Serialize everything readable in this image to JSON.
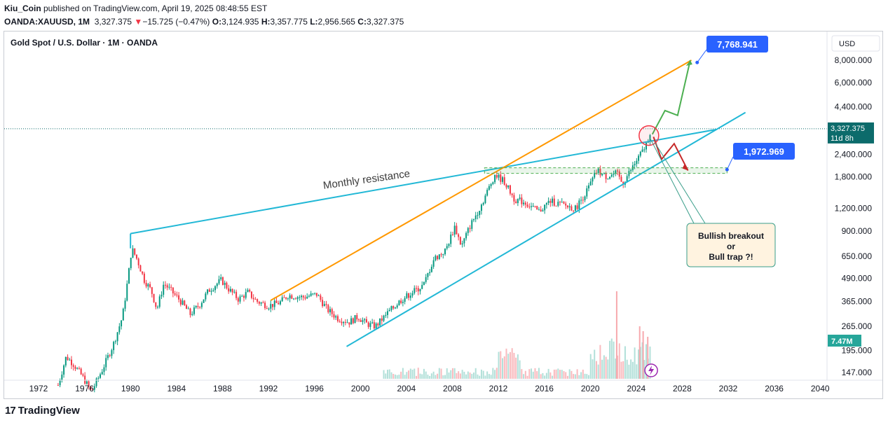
{
  "header": {
    "line1_user": "Kiu_Coin",
    "line1_rest": " published on TradingView.com, April 19, 2025 08:48:55 EST",
    "symbol": "OANDA:XAUUSD, 1M",
    "price": "3,327.375",
    "change_arrow": "▼",
    "change": "−15.725 (−0.47%)",
    "o_label": "O:",
    "o": "3,124.935",
    "h_label": "H:",
    "h": "3,357.775",
    "l_label": "L:",
    "l": "2,956.565",
    "c_label": "C:",
    "c": "3,327.375"
  },
  "chart_title": "Gold Spot / U.S. Dollar · 1M · OANDA",
  "currency_button": "USD",
  "footer_brand": "TradingView",
  "colors": {
    "up": "#089981",
    "down": "#f23645",
    "cyan_line": "#22b8d6",
    "orange_line": "#ff9800",
    "green_path": "#4caf50",
    "red_path": "#c62828",
    "label_blue": "#2962ff",
    "price_badge": "#0c6b6b",
    "volume_badge": "#26a69a"
  },
  "chart_data": {
    "type": "candlestick",
    "y_scale": "log",
    "y_ticks": [
      "8,000.000",
      "6,000.000",
      "4,400.000",
      "2,400.000",
      "1,800.000",
      "1,200.000",
      "900.000",
      "650.000",
      "490.000",
      "365.000",
      "265.000",
      "195.000",
      "147.000"
    ],
    "x_ticks": [
      "1972",
      "1976",
      "1980",
      "1984",
      "1988",
      "1992",
      "1996",
      "2000",
      "2004",
      "2008",
      "2012",
      "2016",
      "2020",
      "2024",
      "2028",
      "2032",
      "2036",
      "2040"
    ],
    "price_series": [
      {
        "x": 1973.7,
        "y": 125
      },
      {
        "x": 1974.4,
        "y": 180
      },
      {
        "x": 1975.0,
        "y": 165
      },
      {
        "x": 1975.8,
        "y": 140
      },
      {
        "x": 1976.6,
        "y": 115
      },
      {
        "x": 1977.5,
        "y": 150
      },
      {
        "x": 1978.5,
        "y": 210
      },
      {
        "x": 1979.3,
        "y": 300
      },
      {
        "x": 1979.8,
        "y": 500
      },
      {
        "x": 1980.1,
        "y": 720
      },
      {
        "x": 1980.6,
        "y": 620
      },
      {
        "x": 1981.2,
        "y": 480
      },
      {
        "x": 1981.8,
        "y": 420
      },
      {
        "x": 1982.3,
        "y": 330
      },
      {
        "x": 1982.9,
        "y": 460
      },
      {
        "x": 1983.5,
        "y": 420
      },
      {
        "x": 1984.3,
        "y": 370
      },
      {
        "x": 1985.2,
        "y": 310
      },
      {
        "x": 1986.0,
        "y": 350
      },
      {
        "x": 1986.8,
        "y": 420
      },
      {
        "x": 1987.9,
        "y": 480
      },
      {
        "x": 1988.5,
        "y": 430
      },
      {
        "x": 1989.4,
        "y": 375
      },
      {
        "x": 1990.2,
        "y": 410
      },
      {
        "x": 1991.0,
        "y": 365
      },
      {
        "x": 1992.0,
        "y": 345
      },
      {
        "x": 1993.0,
        "y": 360
      },
      {
        "x": 1993.7,
        "y": 395
      },
      {
        "x": 1995.0,
        "y": 385
      },
      {
        "x": 1996.2,
        "y": 400
      },
      {
        "x": 1997.1,
        "y": 330
      },
      {
        "x": 1998.0,
        "y": 295
      },
      {
        "x": 1999.0,
        "y": 280
      },
      {
        "x": 1999.8,
        "y": 300
      },
      {
        "x": 2000.5,
        "y": 275
      },
      {
        "x": 2001.3,
        "y": 265
      },
      {
        "x": 2002.5,
        "y": 320
      },
      {
        "x": 2003.5,
        "y": 370
      },
      {
        "x": 2004.5,
        "y": 410
      },
      {
        "x": 2005.5,
        "y": 450
      },
      {
        "x": 2006.4,
        "y": 630
      },
      {
        "x": 2007.4,
        "y": 700
      },
      {
        "x": 2008.2,
        "y": 950
      },
      {
        "x": 2008.8,
        "y": 740
      },
      {
        "x": 2009.5,
        "y": 950
      },
      {
        "x": 2010.5,
        "y": 1250
      },
      {
        "x": 2011.7,
        "y": 1850
      },
      {
        "x": 2012.5,
        "y": 1700
      },
      {
        "x": 2013.4,
        "y": 1350
      },
      {
        "x": 2014.3,
        "y": 1300
      },
      {
        "x": 2015.5,
        "y": 1150
      },
      {
        "x": 2016.5,
        "y": 1320
      },
      {
        "x": 2017.5,
        "y": 1260
      },
      {
        "x": 2018.7,
        "y": 1200
      },
      {
        "x": 2019.7,
        "y": 1500
      },
      {
        "x": 2020.6,
        "y": 1950
      },
      {
        "x": 2021.3,
        "y": 1800
      },
      {
        "x": 2022.3,
        "y": 1880
      },
      {
        "x": 2022.8,
        "y": 1650
      },
      {
        "x": 2023.5,
        "y": 1950
      },
      {
        "x": 2024.2,
        "y": 2300
      },
      {
        "x": 2024.8,
        "y": 2650
      },
      {
        "x": 2025.3,
        "y": 3327
      }
    ],
    "annotations": {
      "monthly_resistance": "Monthly resistance",
      "target_high": "7,768.941",
      "target_low": "1,972.969",
      "callout_line1": "Bullish breakout",
      "callout_line2": "or",
      "callout_line3": "Bull trap ?!",
      "last_price": "3,327.375",
      "countdown": "11d 8h",
      "volume": "7.47M"
    }
  }
}
